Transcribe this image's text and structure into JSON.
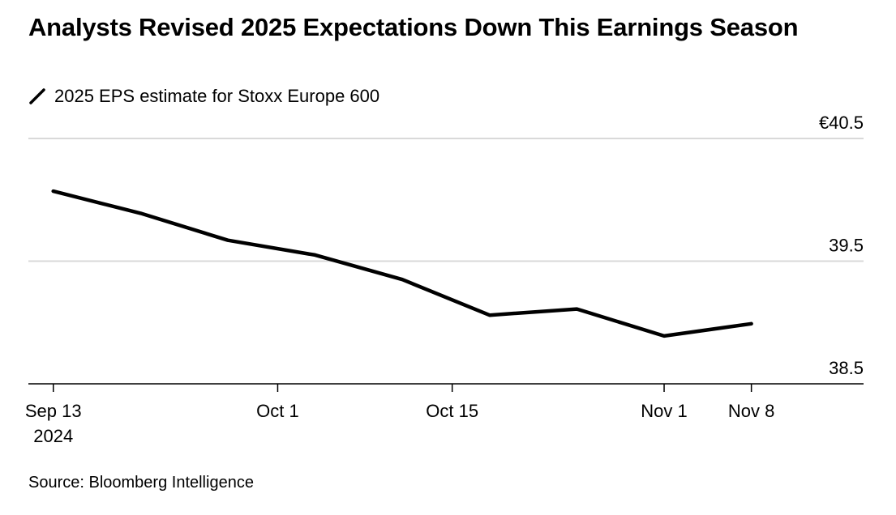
{
  "title": "Analysts Revised 2025 Expectations Down This Earnings Season",
  "legend": {
    "label": "2025 EPS estimate for Stoxx Europe 600",
    "icon": "diagonal-line-icon"
  },
  "source": "Source: Bloomberg Intelligence",
  "colors": {
    "line": "#000000",
    "grid": "#d9d9d9",
    "axis": "#000000"
  },
  "chart_data": {
    "type": "line",
    "title": "Analysts Revised 2025 Expectations Down This Earnings Season",
    "xlabel": "",
    "ylabel": "",
    "ylim": [
      38.5,
      40.5
    ],
    "xlim": [
      "2024-09-11",
      "2024-11-17"
    ],
    "y_ticks": [
      {
        "value": 40.5,
        "label": "€40.5"
      },
      {
        "value": 39.5,
        "label": "39.5"
      },
      {
        "value": 38.5,
        "label": "38.5"
      }
    ],
    "x_ticks": [
      {
        "date": "2024-09-13",
        "label": "Sep 13",
        "sublabel": "2024"
      },
      {
        "date": "2024-10-01",
        "label": "Oct 1"
      },
      {
        "date": "2024-10-15",
        "label": "Oct 15"
      },
      {
        "date": "2024-11-01",
        "label": "Nov 1"
      },
      {
        "date": "2024-11-08",
        "label": "Nov 8"
      }
    ],
    "grid": true,
    "legend_position": "top-left",
    "series": [
      {
        "name": "2025 EPS estimate for Stoxx Europe 600",
        "points": [
          {
            "x": "2024-09-13",
            "y": 40.07
          },
          {
            "x": "2024-09-20",
            "y": 39.89
          },
          {
            "x": "2024-09-27",
            "y": 39.67
          },
          {
            "x": "2024-10-04",
            "y": 39.55
          },
          {
            "x": "2024-10-11",
            "y": 39.35
          },
          {
            "x": "2024-10-18",
            "y": 39.06
          },
          {
            "x": "2024-10-25",
            "y": 39.11
          },
          {
            "x": "2024-11-01",
            "y": 38.89
          },
          {
            "x": "2024-11-08",
            "y": 38.99
          }
        ]
      }
    ]
  }
}
